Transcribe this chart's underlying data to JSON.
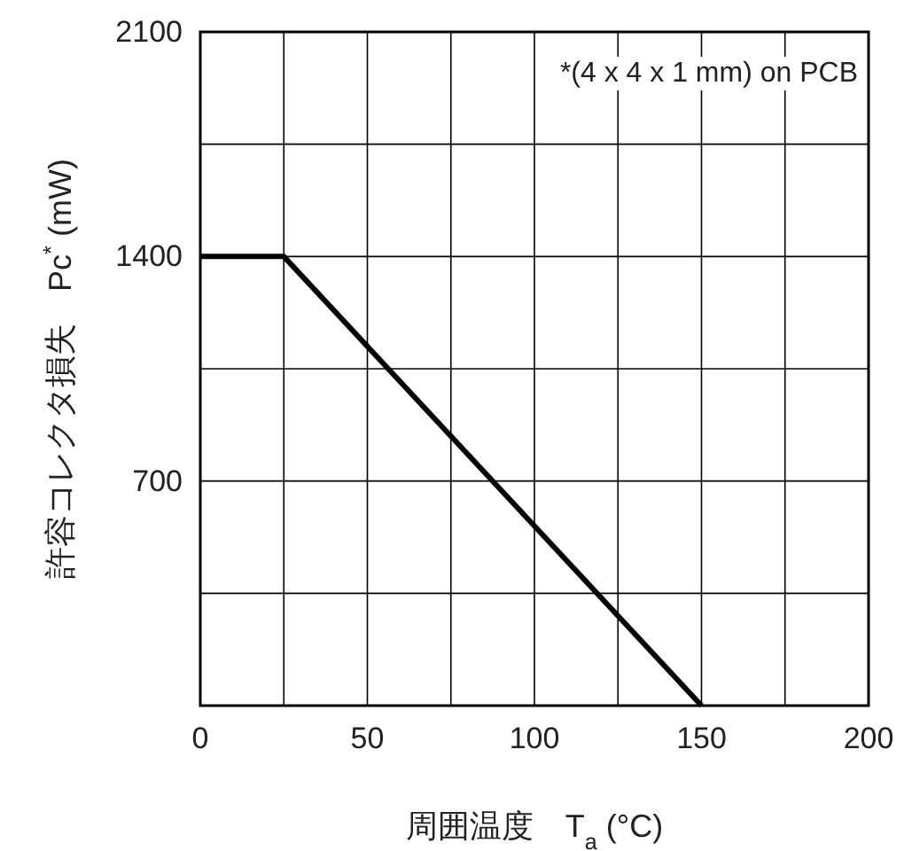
{
  "chart_data": {
    "type": "line",
    "xlabel": "周囲温度　T$_{a}$ (°C)",
    "ylabel": "許容コレクタ損失　Pc$^{*}$ (mW)",
    "annotations": [
      "*(4 x 4 x 1 mm) on PCB"
    ],
    "x": [
      0,
      25,
      150
    ],
    "series": [
      {
        "color": "#000000",
        "values": [
          1400,
          1400,
          0
        ]
      }
    ],
    "xlim": [
      0,
      200
    ],
    "xticks": [
      0,
      {
        "value": 25,
        "label": null
      },
      50,
      {
        "value": 75,
        "label": null
      },
      100,
      {
        "value": 125,
        "label": null
      },
      150,
      {
        "value": 175,
        "label": null
      },
      200
    ],
    "ylim": [
      0,
      2100
    ],
    "yticks": [
      {
        "value": 0,
        "label": null
      },
      {
        "value": 350,
        "label": null
      },
      700,
      {
        "value": 1050,
        "label": null
      },
      1400,
      {
        "value": 1750,
        "label": null
      },
      2100
    ],
    "grid": true,
    "marker": "none",
    "line_style": "solid"
  }
}
